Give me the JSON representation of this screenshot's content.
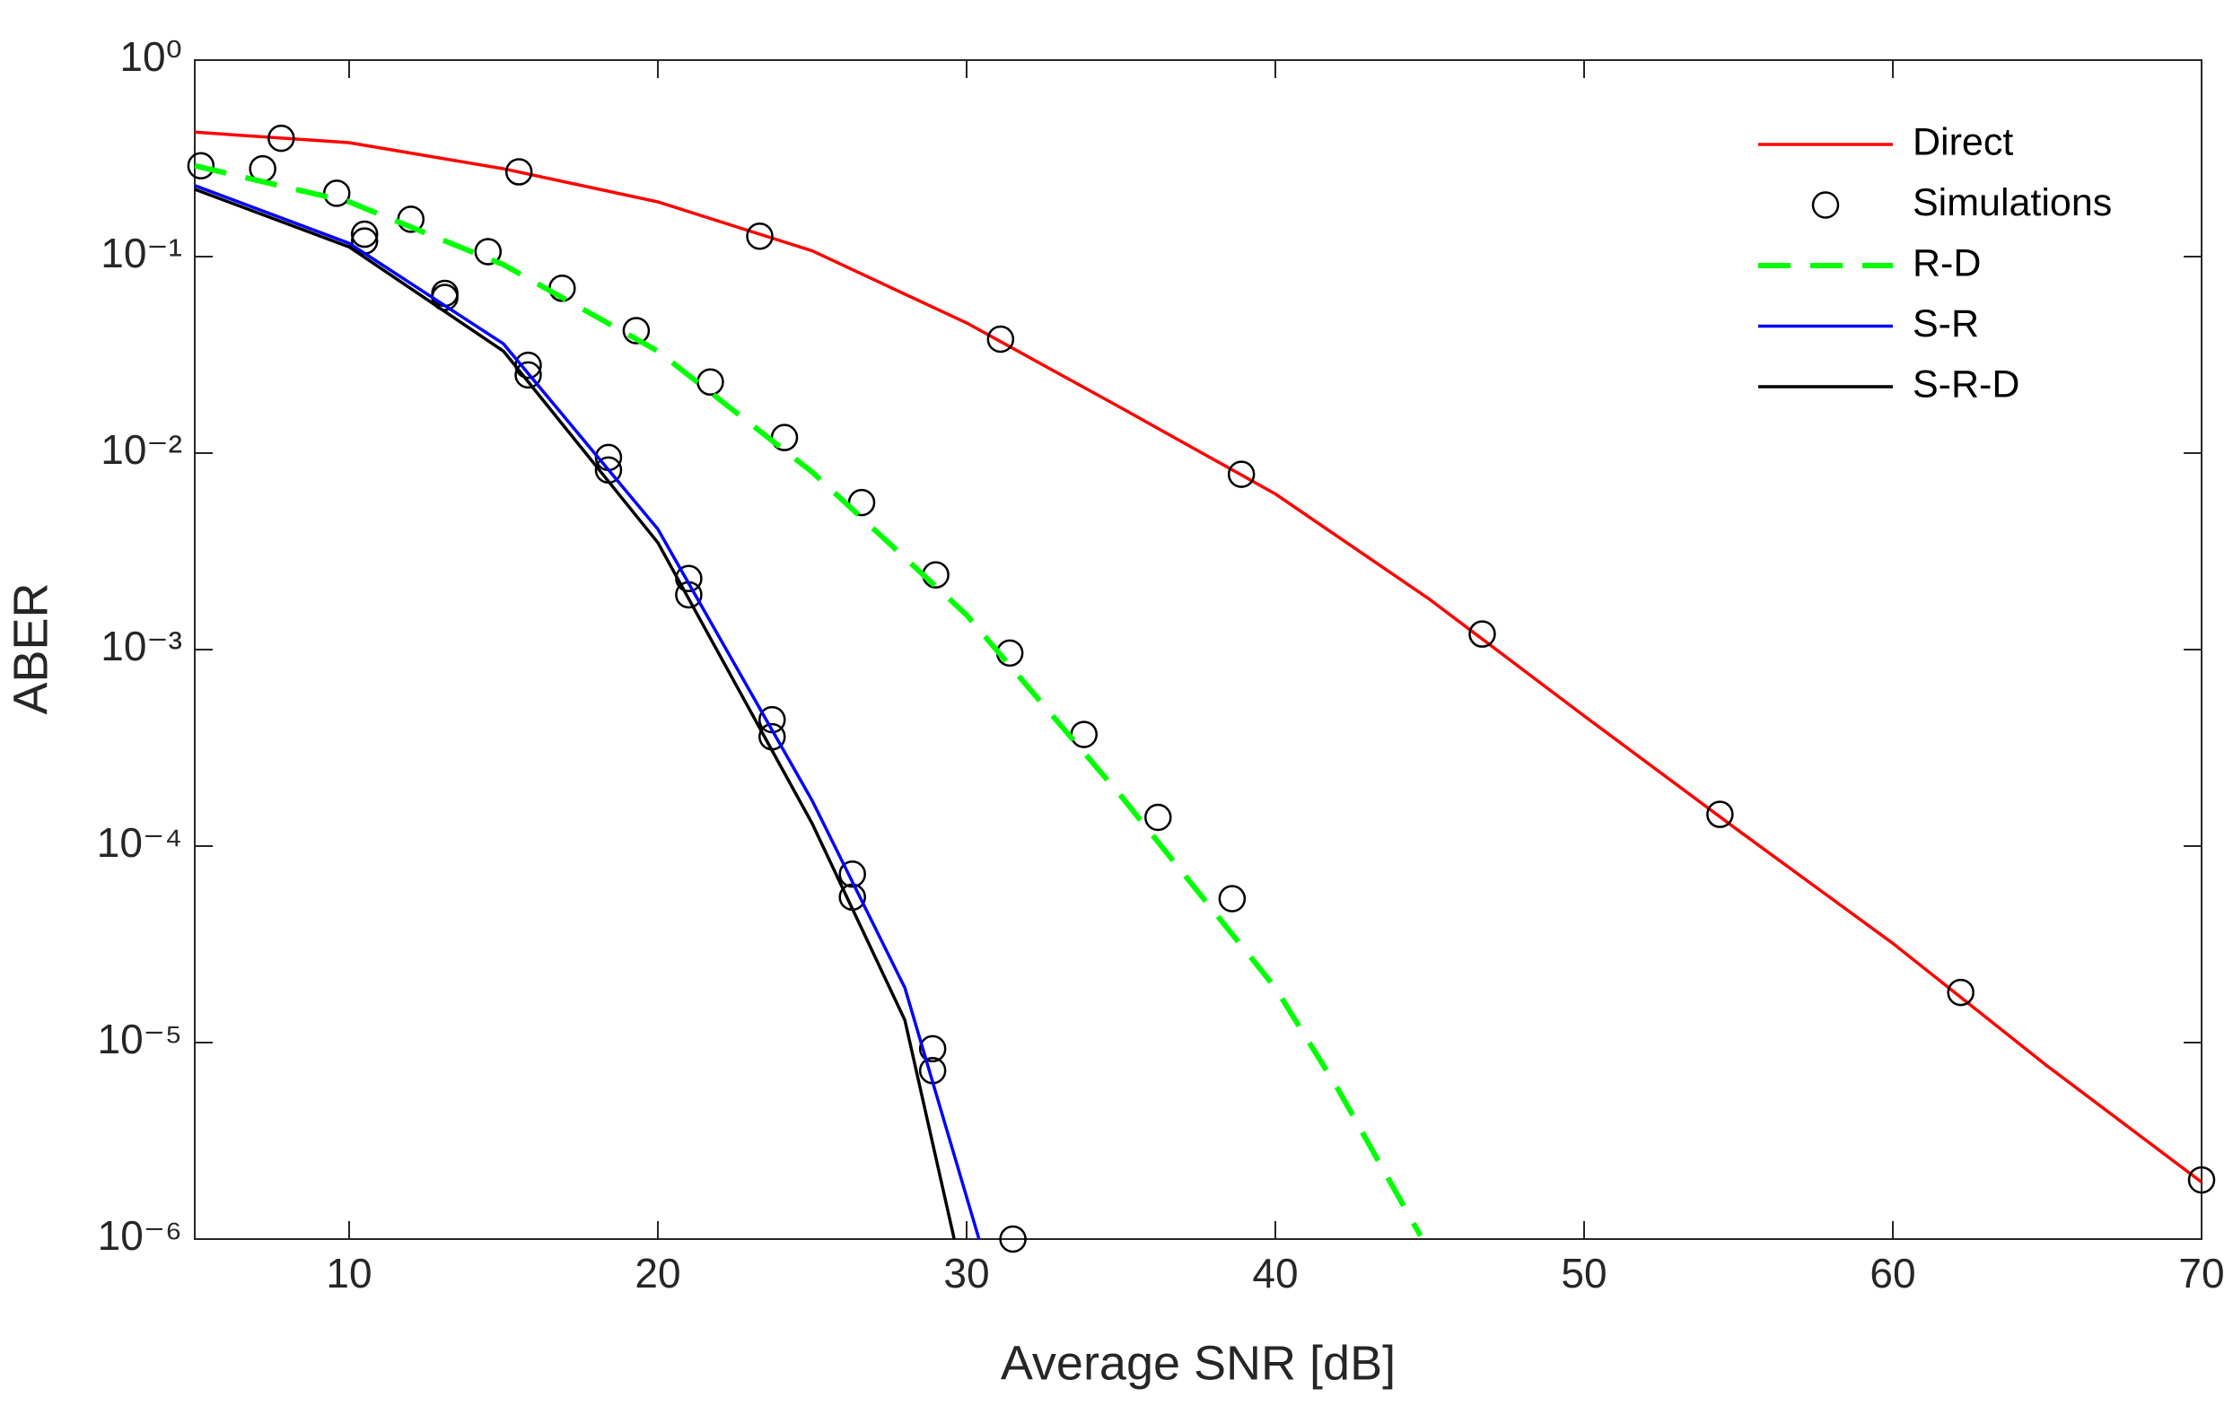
{
  "chart_data": {
    "type": "line",
    "xlabel": "Average SNR [dB]",
    "ylabel": "ABER",
    "xlim": [
      5,
      70
    ],
    "xticks": [
      10,
      20,
      30,
      40,
      50,
      60,
      70
    ],
    "ylim": [
      1e-06,
      1
    ],
    "ylog": true,
    "yticks": [
      {
        "value": 1,
        "label": "10⁰"
      },
      {
        "value": 0.1,
        "label": "10⁻¹"
      },
      {
        "value": 0.01,
        "label": "10⁻²"
      },
      {
        "value": 0.001,
        "label": "10⁻³"
      },
      {
        "value": 0.0001,
        "label": "10⁻⁴"
      },
      {
        "value": 1e-05,
        "label": "10⁻⁵"
      },
      {
        "value": 1e-06,
        "label": "10⁻⁶"
      }
    ],
    "grid": false,
    "legend": "upper right",
    "series": [
      {
        "name": "Direct",
        "color": "#ff0000",
        "style": "solid",
        "x": [
          5,
          10,
          15,
          20,
          25,
          30,
          35,
          40,
          45,
          50,
          55,
          60,
          65,
          70
        ],
        "values": [
          0.43,
          0.38,
          0.28,
          0.19,
          0.107,
          0.046,
          0.017,
          0.0062,
          0.0018,
          0.00046,
          0.00012,
          3.2e-05,
          7.6e-06,
          1.95e-06
        ]
      },
      {
        "name": "Simulations",
        "color": "#000000",
        "style": "marker",
        "x": [
          7.8,
          15.5,
          23.3,
          31.1,
          38.9,
          46.7,
          54.4,
          62.2,
          70,
          5.2,
          7.2,
          9.6,
          12,
          14.5,
          16.9,
          19.3,
          21.7,
          24.1,
          26.6,
          29,
          31.4,
          33.8,
          36.2,
          38.6,
          10.5,
          10.5,
          13.1,
          13.1,
          15.8,
          15.8,
          18.4,
          18.4,
          21,
          21,
          23.7,
          23.7,
          26.3,
          26.3,
          28.9,
          28.9,
          31.5
        ],
        "values": [
          0.4,
          0.27,
          0.127,
          0.038,
          0.0078,
          0.0012,
          0.000145,
          1.8e-05,
          2e-06,
          0.29,
          0.28,
          0.21,
          0.155,
          0.106,
          0.069,
          0.042,
          0.023,
          0.012,
          0.0056,
          0.0024,
          0.00096,
          0.00037,
          0.00014,
          5.4e-05,
          0.13,
          0.12,
          0.065,
          0.062,
          0.028,
          0.025,
          0.0095,
          0.0082,
          0.0023,
          0.0019,
          0.00044,
          0.00036,
          7.2e-05,
          5.5e-05,
          9.3e-06,
          7.2e-06,
          1e-06
        ]
      },
      {
        "name": "R-D",
        "color": "#00ff00",
        "style": "dashed",
        "x": [
          5,
          10,
          15,
          20,
          25,
          30,
          35,
          40,
          42,
          44.7
        ],
        "values": [
          0.29,
          0.19,
          0.091,
          0.033,
          0.008,
          0.0015,
          0.00018,
          1.9e-05,
          5.9e-06,
          1.04e-06
        ]
      },
      {
        "name": "S-R",
        "color": "#0000ff",
        "style": "solid",
        "x": [
          5,
          10,
          15,
          20,
          25,
          28,
          30.4
        ],
        "values": [
          0.23,
          0.117,
          0.036,
          0.0041,
          0.00017,
          1.9e-05,
          1e-06
        ]
      },
      {
        "name": "S-R-D",
        "color": "#000000",
        "style": "solid",
        "x": [
          5,
          10,
          15,
          20,
          25,
          28,
          29.6
        ],
        "values": [
          0.22,
          0.112,
          0.033,
          0.0035,
          0.00013,
          1.3e-05,
          1e-06
        ]
      }
    ]
  }
}
